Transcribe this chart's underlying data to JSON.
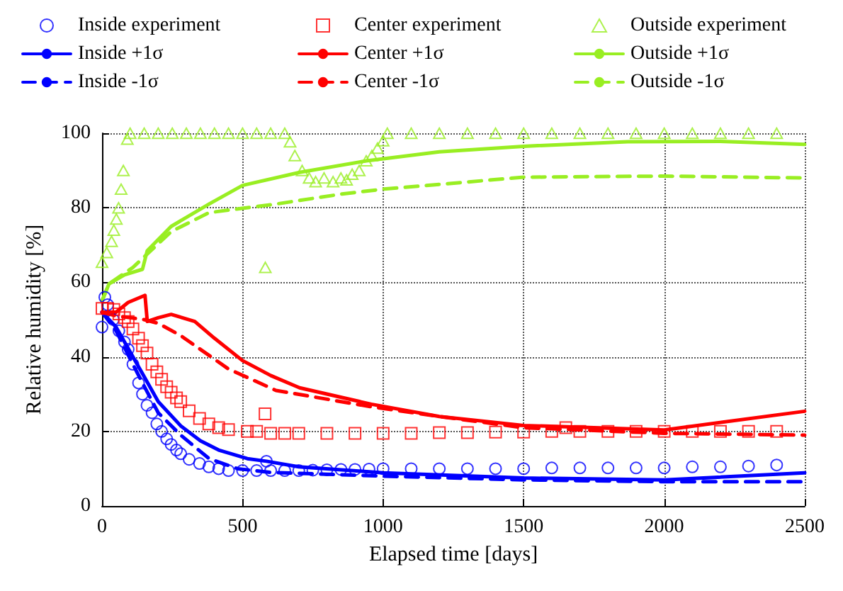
{
  "chart_data": {
    "type": "line",
    "xlabel": "Elapsed time [days]",
    "ylabel": "Relative humidity [%]",
    "xlim": [
      0,
      2500
    ],
    "xticks": [
      0,
      500,
      1000,
      1500,
      2000,
      2500
    ],
    "ylim": [
      0,
      100
    ],
    "yticks": [
      0,
      20,
      40,
      60,
      80,
      100
    ],
    "grid": true,
    "legend": "top",
    "series": [
      {
        "name": "Inside experiment",
        "type": "scatter",
        "marker": "circle",
        "color": "#0000ff",
        "x": [
          0,
          10,
          20,
          40,
          60,
          80,
          93,
          110,
          130,
          144,
          160,
          178,
          195,
          212,
          230,
          246,
          265,
          280,
          310,
          347,
          380,
          415,
          450,
          500,
          550,
          585,
          600,
          650,
          700,
          750,
          800,
          850,
          900,
          950,
          1000,
          1100,
          1200,
          1300,
          1400,
          1500,
          1600,
          1700,
          1800,
          1900,
          2000,
          2100,
          2200,
          2300,
          2400
        ],
        "values": [
          48,
          56,
          54,
          50,
          47,
          44,
          42,
          38,
          33,
          30,
          27,
          25,
          22,
          20,
          18,
          16.5,
          15,
          14,
          12.5,
          11.4,
          10.5,
          10,
          9.5,
          9.5,
          9.5,
          12,
          9.5,
          9.5,
          9.5,
          9.6,
          9.7,
          9.8,
          9.8,
          9.9,
          10,
          10,
          10,
          10,
          10,
          10,
          10.2,
          10.2,
          10.2,
          10.2,
          10.2,
          10.5,
          10.5,
          10.7,
          11
        ]
      },
      {
        "name": "Center experiment",
        "type": "scatter",
        "marker": "square",
        "color": "#ff0000",
        "x": [
          0,
          20,
          42,
          60,
          80,
          93,
          110,
          130,
          144,
          160,
          178,
          195,
          212,
          230,
          246,
          265,
          280,
          310,
          347,
          380,
          415,
          450,
          517,
          550,
          580,
          600,
          650,
          700,
          800,
          900,
          1000,
          1100,
          1200,
          1300,
          1400,
          1500,
          1600,
          1650,
          1700,
          1800,
          1900,
          2000,
          2100,
          2200,
          2300,
          2400
        ],
        "values": [
          53,
          53,
          52.7,
          51.5,
          50.5,
          49.5,
          47.5,
          45,
          43,
          41,
          38,
          36,
          34,
          32,
          30.5,
          29,
          28,
          25.5,
          23.5,
          22,
          21,
          20.5,
          20,
          20,
          24.7,
          19.5,
          19.5,
          19.5,
          19.5,
          19.5,
          19.5,
          19.5,
          19.7,
          19.7,
          19.8,
          19.8,
          20,
          21,
          20,
          20,
          20,
          20,
          20,
          20,
          20,
          20
        ]
      },
      {
        "name": "Outside experiment",
        "type": "scatter",
        "marker": "triangle",
        "color": "#99ee22",
        "x": [
          0,
          17,
          34,
          42,
          51,
          59,
          68,
          76,
          90,
          100,
          150,
          200,
          250,
          300,
          350,
          400,
          450,
          500,
          550,
          581,
          600,
          650,
          669,
          686,
          712,
          737,
          760,
          790,
          822,
          850,
          870,
          890,
          915,
          940,
          960,
          980,
          1000,
          1015,
          1100,
          1200,
          1300,
          1400,
          1500,
          1600,
          1700,
          1800,
          1900,
          2000,
          2100,
          2200,
          2300,
          2400
        ],
        "values": [
          65.4,
          68,
          71,
          74,
          77,
          80,
          85,
          90,
          98.4,
          100,
          100,
          100,
          100,
          100,
          100,
          100,
          100,
          100,
          100,
          64,
          100,
          100,
          97.7,
          94,
          90,
          88,
          87,
          88,
          87,
          88,
          87.5,
          89,
          90,
          92.6,
          94,
          96,
          98,
          100,
          100,
          100,
          100,
          100,
          100,
          100,
          100,
          100,
          100,
          100,
          100,
          100,
          100,
          100
        ]
      },
      {
        "name": "Inside +1σ",
        "marker": "none",
        "line_style": "solid",
        "color": "#0000ff",
        "x": [
          0,
          50,
          110,
          144,
          200,
          280,
          350,
          415,
          517,
          585,
          700,
          1000,
          1500,
          2000,
          2500
        ],
        "values": [
          52,
          48,
          40,
          35.5,
          28,
          21.5,
          17.5,
          15,
          12.7,
          12,
          10.5,
          8.9,
          7.5,
          7,
          8.9
        ]
      },
      {
        "name": "Center +1σ",
        "marker": "none",
        "line_style": "solid",
        "color": "#ff0000",
        "x": [
          0,
          50,
          93,
          153,
          161,
          200,
          246,
          330,
          400,
          500,
          600,
          703,
          958,
          1200,
          1500,
          2000,
          2500
        ],
        "values": [
          52,
          52,
          54.6,
          56.5,
          49.5,
          50.5,
          51.4,
          49.5,
          45,
          39,
          35,
          31.7,
          27.3,
          24,
          21.6,
          20.4,
          25.4
        ]
      },
      {
        "name": "Outside +1σ",
        "marker": "none",
        "line_style": "solid",
        "color": "#99ee22",
        "x": [
          0,
          25,
          80,
          144,
          161,
          246,
          381,
          500,
          703,
          941,
          1200,
          1500,
          1870,
          2200,
          2500
        ],
        "values": [
          55,
          59.6,
          62,
          63.5,
          68.5,
          75,
          81,
          86,
          89.5,
          92.6,
          95,
          96.5,
          97.7,
          97.8,
          97
        ]
      },
      {
        "name": "Inside -1σ",
        "marker": "none",
        "line_style": "dashed",
        "color": "#0000ff",
        "x": [
          0,
          50,
          110,
          144,
          200,
          280,
          381,
          483,
          600,
          1000,
          1500,
          2000,
          2500
        ],
        "values": [
          52,
          47,
          38,
          33,
          25,
          19,
          12.7,
          10,
          9,
          8,
          7,
          6.5,
          6.5
        ]
      },
      {
        "name": "Center -1σ",
        "marker": "none",
        "line_style": "dashed",
        "color": "#ff0000",
        "x": [
          0,
          50,
          100,
          150,
          200,
          280,
          449,
          619,
          958,
          1200,
          1500,
          2000,
          2500
        ],
        "values": [
          52,
          51,
          50.5,
          50,
          49,
          45.7,
          36.8,
          31,
          26.6,
          24,
          21,
          19.5,
          19
        ]
      },
      {
        "name": "Outside -1σ",
        "marker": "none",
        "line_style": "dashed",
        "color": "#99ee22",
        "x": [
          0,
          25,
          110,
          246,
          381,
          619,
          854,
          1000,
          1500,
          2000,
          2500
        ],
        "values": [
          55,
          59.6,
          64,
          73.6,
          78.7,
          81,
          83.7,
          85,
          88.2,
          88.5,
          88
        ]
      }
    ]
  }
}
